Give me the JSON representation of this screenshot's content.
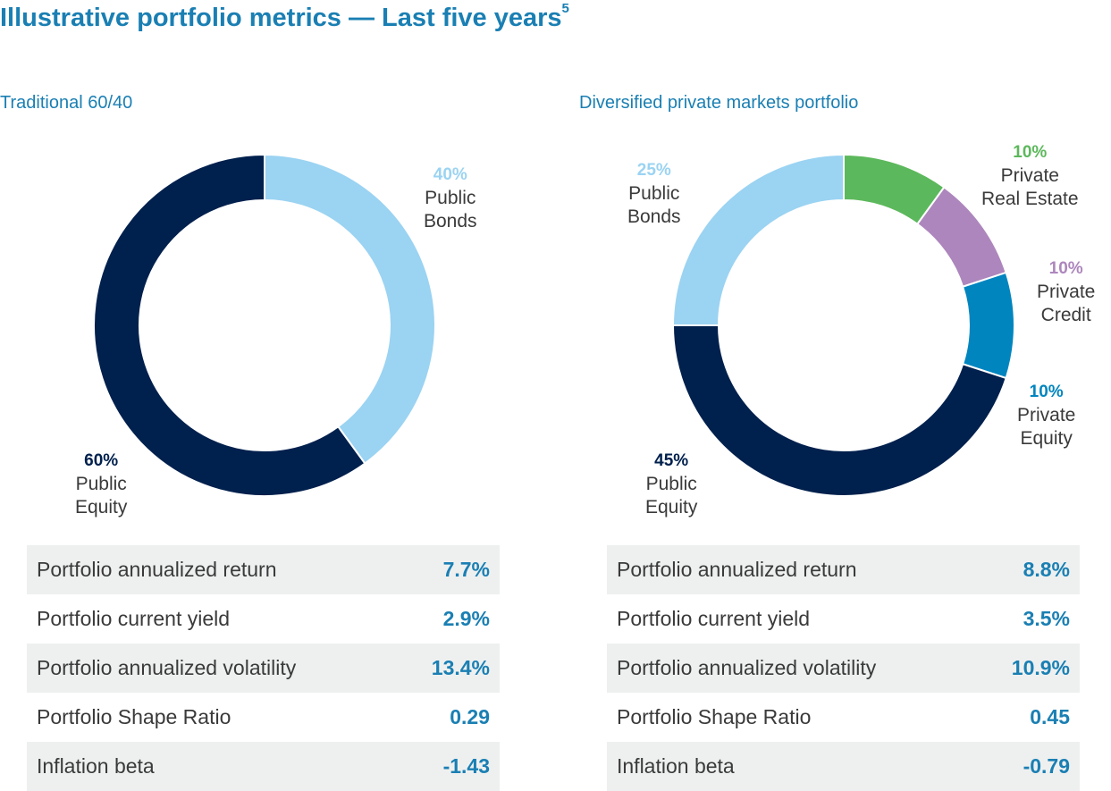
{
  "title": "Illustrative portfolio metrics — Last five years",
  "title_sup": "5",
  "colors": {
    "public_equity": "#00204d",
    "public_bonds": "#9bd3f2",
    "private_real_estate": "#5cb85c",
    "private_credit": "#ad86bd",
    "private_equity": "#0085bf",
    "accent": "#1a7fb3"
  },
  "chart_data": [
    {
      "type": "pie",
      "title": "Traditional 60/40",
      "slices": [
        {
          "pct_label": "40%",
          "name": "Public Bonds",
          "value": 40,
          "color": "#9bd3f2"
        },
        {
          "pct_label": "60%",
          "name": "Public Equity",
          "value": 60,
          "color": "#00204d"
        }
      ]
    },
    {
      "type": "pie",
      "title": "Diversified private markets portfolio",
      "slices": [
        {
          "pct_label": "10%",
          "name": "Private Real Estate",
          "value": 10,
          "color": "#5cb85c"
        },
        {
          "pct_label": "10%",
          "name": "Private Credit",
          "value": 10,
          "color": "#ad86bd"
        },
        {
          "pct_label": "10%",
          "name": "Private Equity",
          "value": 10,
          "color": "#0085bf"
        },
        {
          "pct_label": "45%",
          "name": "Public Equity",
          "value": 45,
          "color": "#00204d"
        },
        {
          "pct_label": "25%",
          "name": "Public Bonds",
          "value": 25,
          "color": "#9bd3f2"
        }
      ]
    }
  ],
  "labels": {
    "left_bonds_pct": "40%",
    "left_bonds_l1": "Public",
    "left_bonds_l2": "Bonds",
    "left_equity_pct": "60%",
    "left_equity_l1": "Public",
    "left_equity_l2": "Equity",
    "right_bonds_pct": "25%",
    "right_bonds_l1": "Public",
    "right_bonds_l2": "Bonds",
    "right_re_pct": "10%",
    "right_re_l1": "Private",
    "right_re_l2": "Real Estate",
    "right_credit_pct": "10%",
    "right_credit_l1": "Private",
    "right_credit_l2": "Credit",
    "right_pe_pct": "10%",
    "right_pe_l1": "Private",
    "right_pe_l2": "Equity",
    "right_equity_pct": "45%",
    "right_equity_l1": "Public",
    "right_equity_l2": "Equity"
  },
  "metrics_left": [
    {
      "label": "Portfolio annualized return",
      "value": "7.7%"
    },
    {
      "label": "Portfolio current yield",
      "value": "2.9%"
    },
    {
      "label": "Portfolio annualized volatility",
      "value": "13.4%"
    },
    {
      "label": "Portfolio Shape Ratio",
      "value": "0.29"
    },
    {
      "label": "Inflation beta",
      "value": "-1.43"
    }
  ],
  "metrics_right": [
    {
      "label": "Portfolio annualized return",
      "value": "8.8%"
    },
    {
      "label": "Portfolio current yield",
      "value": "3.5%"
    },
    {
      "label": "Portfolio annualized volatility",
      "value": "10.9%"
    },
    {
      "label": "Portfolio Shape Ratio",
      "value": "0.45"
    },
    {
      "label": "Inflation beta",
      "value": "-0.79"
    }
  ]
}
